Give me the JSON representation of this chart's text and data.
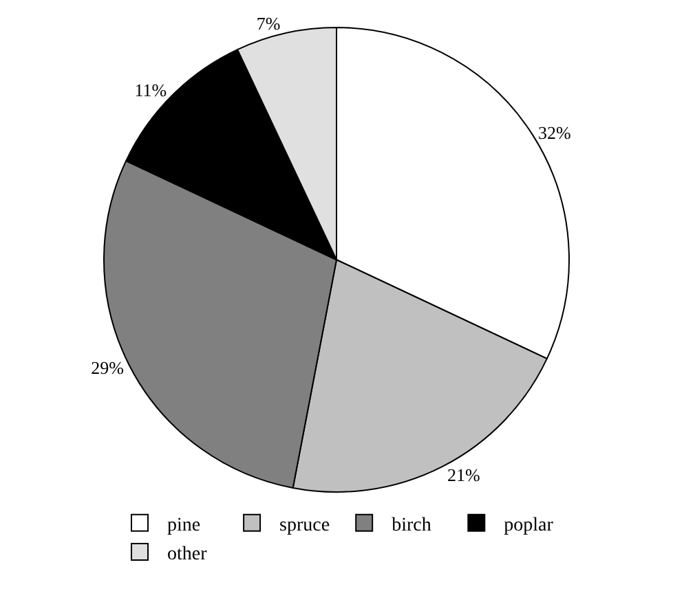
{
  "chart_data": {
    "type": "pie",
    "categories": [
      "pine",
      "spruce",
      "birch",
      "poplar",
      "other"
    ],
    "values": [
      32,
      21,
      29,
      11,
      7
    ],
    "value_labels": [
      "32%",
      "21%",
      "29%",
      "11%",
      "7%"
    ],
    "colors": [
      "#ffffff",
      "#c0c0c0",
      "#808080",
      "#000000",
      "#e0e0e0"
    ],
    "legend": "bottom"
  }
}
